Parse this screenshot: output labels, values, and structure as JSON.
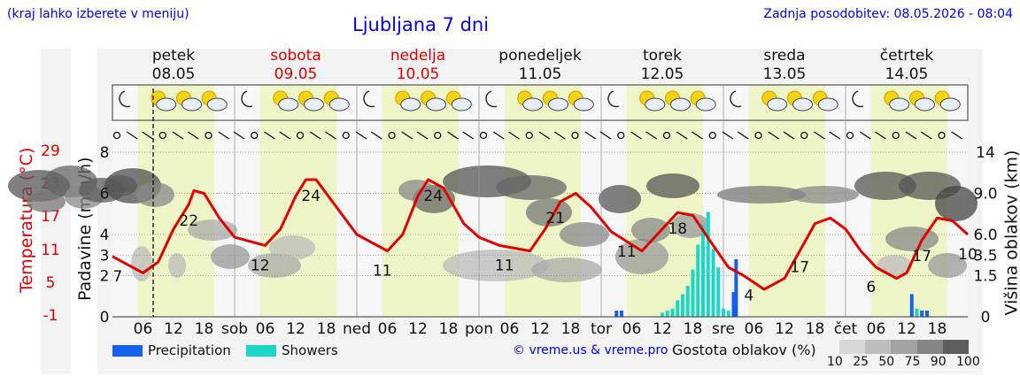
{
  "header": {
    "hint": "(kraj lahko izberete v meniju)",
    "title": "Ljubljana 7 dni",
    "updated": "Zadnja posodobitev: 08.05.2026 - 08:04"
  },
  "days": [
    {
      "name": "petek",
      "date": "08.05",
      "weekend": false
    },
    {
      "name": "sobota",
      "date": "09.05",
      "weekend": true
    },
    {
      "name": "nedelja",
      "date": "10.05",
      "weekend": true
    },
    {
      "name": "ponedeljek",
      "date": "11.05",
      "weekend": false
    },
    {
      "name": "torek",
      "date": "12.05",
      "weekend": false
    },
    {
      "name": "sreda",
      "date": "13.05",
      "weekend": false
    },
    {
      "name": "četrtek",
      "date": "14.05",
      "weekend": false
    }
  ],
  "axes": {
    "left_title": "Padavine (mm/h)",
    "right_title": "Višina oblakov (km)",
    "temp_title": "Temperatura (°C)"
  },
  "chart_data": {
    "type": "line",
    "x_unit": "hour since 08.05 00:00",
    "x_ticks": [
      "06",
      "12",
      "18",
      "sob",
      "06",
      "12",
      "18",
      "ned",
      "06",
      "12",
      "18",
      "pon",
      "06",
      "12",
      "18",
      "tor",
      "06",
      "12",
      "18",
      "sre",
      "06",
      "12",
      "18",
      "čet",
      "06",
      "12",
      "18"
    ],
    "precip_axis": {
      "ticks": [
        "0",
        "2",
        "3",
        "4",
        "6",
        "8"
      ],
      "range": [
        0,
        8
      ]
    },
    "temp_axis": {
      "ticks": [
        "-1",
        "5",
        "11",
        "17",
        "23",
        "29"
      ],
      "range": [
        -1,
        29
      ]
    },
    "cloud_height_axis": {
      "ticks": [
        "0",
        "1.5",
        "3.5",
        "6.0",
        "9.0",
        "14"
      ]
    },
    "series": [
      {
        "name": "Temperatura",
        "color": "#e00000",
        "points": [
          [
            0,
            10
          ],
          [
            6,
            7
          ],
          [
            9,
            9
          ],
          [
            12,
            15
          ],
          [
            15,
            19.5
          ],
          [
            16,
            22
          ],
          [
            18,
            21.5
          ],
          [
            21,
            17
          ],
          [
            24,
            13.5
          ],
          [
            30,
            12
          ],
          [
            33,
            15
          ],
          [
            36,
            21
          ],
          [
            38,
            24
          ],
          [
            40,
            24
          ],
          [
            44,
            19
          ],
          [
            48,
            14
          ],
          [
            54,
            11
          ],
          [
            57,
            14
          ],
          [
            60,
            21
          ],
          [
            62,
            24
          ],
          [
            65,
            22.5
          ],
          [
            69,
            16
          ],
          [
            72,
            13.5
          ],
          [
            76,
            12
          ],
          [
            82,
            11
          ],
          [
            85,
            15
          ],
          [
            88,
            20
          ],
          [
            91,
            21.5
          ],
          [
            94,
            19
          ],
          [
            98,
            14.5
          ],
          [
            104,
            11
          ],
          [
            108,
            15
          ],
          [
            111,
            18
          ],
          [
            114,
            17.5
          ],
          [
            118,
            12
          ],
          [
            121,
            8
          ],
          [
            124,
            6.5
          ],
          [
            128,
            4
          ],
          [
            132,
            6
          ],
          [
            135,
            11
          ],
          [
            138,
            16
          ],
          [
            141,
            17
          ],
          [
            144,
            15
          ],
          [
            147,
            11
          ],
          [
            150,
            8
          ],
          [
            154,
            6
          ],
          [
            156,
            7
          ],
          [
            159,
            13
          ],
          [
            162,
            17
          ],
          [
            165,
            16.5
          ],
          [
            168,
            14
          ]
        ]
      }
    ],
    "temp_labels": [
      {
        "hour": 1,
        "value": "7"
      },
      {
        "hour": 15,
        "value": "22"
      },
      {
        "hour": 29,
        "value": "12"
      },
      {
        "hour": 39,
        "value": "24"
      },
      {
        "hour": 53,
        "value": "11"
      },
      {
        "hour": 63,
        "value": "24"
      },
      {
        "hour": 77,
        "value": "11"
      },
      {
        "hour": 87,
        "value": "21"
      },
      {
        "hour": 101,
        "value": "11"
      },
      {
        "hour": 111,
        "value": "18"
      },
      {
        "hour": 125,
        "value": "4"
      },
      {
        "hour": 135,
        "value": "17"
      },
      {
        "hour": 149,
        "value": "6"
      },
      {
        "hour": 159,
        "value": "17"
      },
      {
        "hour": 168,
        "value": "10"
      }
    ],
    "precipitation": [
      {
        "hour": 99,
        "value": 0.3
      },
      {
        "hour": 100,
        "value": 0.3
      },
      {
        "hour": 122,
        "value": 1.2
      },
      {
        "hour": 122.5,
        "value": 2.8
      },
      {
        "hour": 157,
        "value": 1.1
      },
      {
        "hour": 159,
        "value": 0.3
      },
      {
        "hour": 160,
        "value": 0.3
      }
    ],
    "showers": [
      {
        "hour": 108,
        "value": 0.2
      },
      {
        "hour": 109,
        "value": 0.3
      },
      {
        "hour": 110,
        "value": 0.4
      },
      {
        "hour": 111,
        "value": 0.8
      },
      {
        "hour": 112,
        "value": 1.1
      },
      {
        "hour": 113,
        "value": 1.5
      },
      {
        "hour": 114,
        "value": 2.3
      },
      {
        "hour": 115,
        "value": 3.5
      },
      {
        "hour": 116,
        "value": 4.5
      },
      {
        "hour": 117,
        "value": 5.1
      },
      {
        "hour": 118,
        "value": 3.3
      },
      {
        "hour": 119,
        "value": 2.4
      },
      {
        "hour": 120,
        "value": 0.4
      },
      {
        "hour": 121,
        "value": 0.3
      },
      {
        "hour": 158,
        "value": 0.4
      },
      {
        "hour": 159,
        "value": 0.2
      }
    ],
    "now_hour": 8,
    "legend": [
      {
        "label": "Precipitation",
        "color": "#1560ee"
      },
      {
        "label": "Showers",
        "color": "#1cd6c7"
      }
    ],
    "cloud_legend": {
      "title": "Gostota oblakov (%)",
      "steps": [
        "10",
        "25",
        "50",
        "75",
        "90",
        "100"
      ]
    },
    "credit": "© vreme.us & vreme.pro"
  },
  "colors": {
    "daytime": "#eef6c8",
    "night": "#f7f7f7",
    "temp_line": "#e00000",
    "label_blue": "#0000ee"
  }
}
